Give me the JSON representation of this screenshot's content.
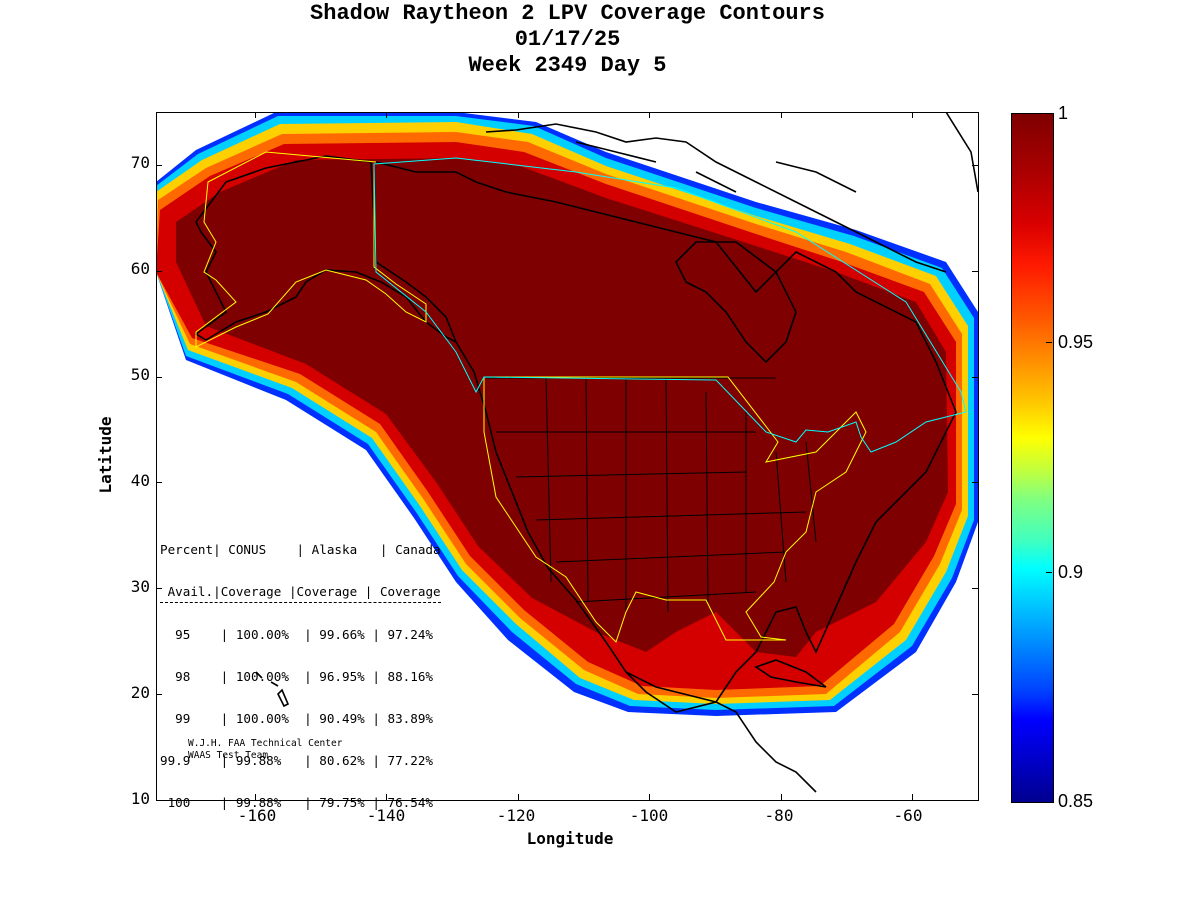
{
  "title": {
    "line1": "Shadow Raytheon 2 LPV Coverage Contours",
    "line2": "01/17/25",
    "line3": "Week 2349 Day 5"
  },
  "axes": {
    "xlabel": "Longitude",
    "ylabel": "Latitude",
    "xticks": [
      "-160",
      "-140",
      "-120",
      "-100",
      "-80",
      "-60"
    ],
    "yticks": [
      "70",
      "60",
      "50",
      "40",
      "30",
      "20",
      "10"
    ],
    "xlim": [
      -175,
      -50
    ],
    "ylim": [
      10,
      75
    ]
  },
  "colorbar": {
    "labels": [
      "1",
      "0.95",
      "0.9",
      "0.85"
    ],
    "range": [
      0.85,
      1
    ],
    "colormap": "jet"
  },
  "stats": {
    "header1": [
      "Percent",
      "CONUS",
      "Alaska",
      "Canada"
    ],
    "header2": [
      "Avail.",
      "Coverage",
      "Coverage",
      "Coverage"
    ],
    "rows": [
      [
        "95",
        "100.00%",
        "99.66%",
        "97.24%"
      ],
      [
        "98",
        "100.00%",
        "96.95%",
        "88.16%"
      ],
      [
        "99",
        "100.00%",
        "90.49%",
        "83.89%"
      ],
      [
        "99.9",
        "99.88%",
        "80.62%",
        "77.22%"
      ],
      [
        "100",
        "99.88%",
        "79.75%",
        "76.54%"
      ]
    ]
  },
  "credits": {
    "line1": "W.J.H. FAA Technical Center",
    "line2": "WAAS Test Team"
  },
  "colors": {
    "core": "#7f0000",
    "boundary_yellow": "#ffff00",
    "boundary_cyan": "#00ffff"
  }
}
